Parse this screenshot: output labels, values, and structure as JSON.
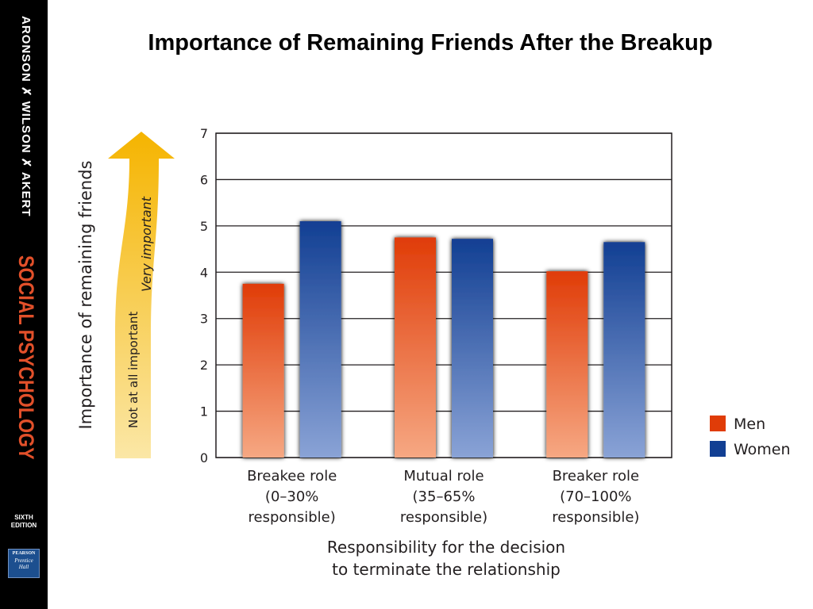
{
  "sidebar": {
    "authors": "ARONSON ✗ WILSON ✗ AKERT",
    "book_title": "SOCIAL PSYCHOLOGY",
    "edition_line1": "SIXTH",
    "edition_line2": "EDITION",
    "publisher_brand": "PEARSON",
    "publisher_line1": "Prentice",
    "publisher_line2": "Hall",
    "colors": {
      "background": "#000000",
      "title_accent": "#e2502a",
      "publisher": "#1c4f8f"
    }
  },
  "slide": {
    "title": "Importance of Remaining Friends After the Breakup"
  },
  "chart_data": {
    "type": "bar",
    "categories": [
      [
        "Breakee role",
        "(0–30%",
        "responsible)"
      ],
      [
        "Mutual role",
        "(35–65%",
        "responsible)"
      ],
      [
        "Breaker role",
        "(70–100%",
        "responsible)"
      ]
    ],
    "series": [
      {
        "name": "Men",
        "values": [
          3.75,
          4.75,
          4.02
        ],
        "color_top": "#e03c08",
        "color_bottom": "#f6a883"
      },
      {
        "name": "Women",
        "values": [
          5.1,
          4.72,
          4.65
        ],
        "color_top": "#123f93",
        "color_bottom": "#8aa3d6"
      }
    ],
    "ylabel": "Importance of remaining friends",
    "xlabel": [
      "Responsibility for the decision",
      "to terminate the relationship"
    ],
    "ylim": [
      0,
      7
    ],
    "yticks": [
      0,
      1,
      2,
      3,
      4,
      5,
      6,
      7
    ],
    "grid": true,
    "legend": "right",
    "arrow": {
      "low_label": "Not at all important",
      "high_label": "Very important",
      "color_top": "#f5b400",
      "color_bottom": "#fbe7a6"
    }
  }
}
